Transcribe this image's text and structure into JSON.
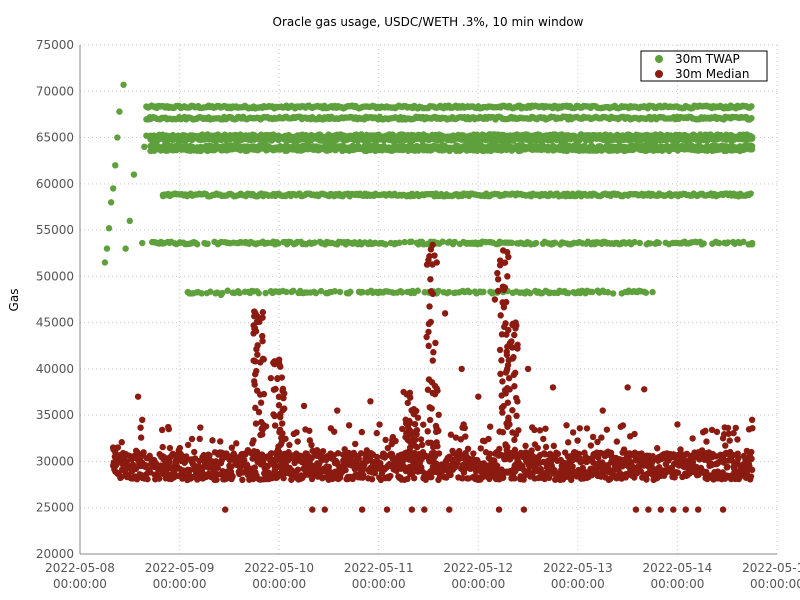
{
  "chart_data": {
    "type": "scatter",
    "title": "Oracle gas usage, USDC/WETH .3%, 10 min window",
    "xlabel": "",
    "ylabel": "Gas",
    "ylim": [
      20000,
      75000
    ],
    "y_ticks": [
      "20000",
      "25000",
      "30000",
      "35000",
      "40000",
      "45000",
      "50000",
      "55000",
      "60000",
      "65000",
      "70000",
      "75000"
    ],
    "xlim": [
      "2022-05-08 00:00:00",
      "2022-05-15 00:00:00"
    ],
    "x_ticks": [
      {
        "date": "2022-05-08",
        "time": "00:00:00"
      },
      {
        "date": "2022-05-09",
        "time": "00:00:00"
      },
      {
        "date": "2022-05-10",
        "time": "00:00:00"
      },
      {
        "date": "2022-05-11",
        "time": "00:00:00"
      },
      {
        "date": "2022-05-12",
        "time": "00:00:00"
      },
      {
        "date": "2022-05-13",
        "time": "00:00:00"
      },
      {
        "date": "2022-05-14",
        "time": "00:00:00"
      },
      {
        "date": "2022-05-15",
        "time": "00:00:00"
      }
    ],
    "grid": true,
    "legend_position": "top-right",
    "series": [
      {
        "name": "30m TWAP",
        "color": "#5ea03c",
        "points": [
          [
            "2022-05-08 06:00",
            51500
          ],
          [
            "2022-05-08 06:30",
            53000
          ],
          [
            "2022-05-08 07:00",
            55200
          ],
          [
            "2022-05-08 07:30",
            58000
          ],
          [
            "2022-05-08 08:00",
            59500
          ],
          [
            "2022-05-08 08:30",
            62000
          ],
          [
            "2022-05-08 09:00",
            65000
          ],
          [
            "2022-05-08 09:30",
            67800
          ],
          [
            "2022-05-08 10:30",
            70700
          ],
          [
            "2022-05-08 11:00",
            53000
          ],
          [
            "2022-05-08 12:00",
            56000
          ],
          [
            "2022-05-08 13:00",
            61000
          ],
          [
            "2022-05-08 15:00",
            53600
          ],
          [
            "2022-05-08 15:30",
            64000
          ],
          [
            "2022-05-08 16:00",
            65200
          ],
          [
            "2022-05-08 17:00",
            67000
          ],
          [
            "2022-05-08 18:00",
            68300
          ],
          [
            "2022-05-08 20:00",
            58800
          ],
          [
            "2022-05-09 00:00",
            53600
          ],
          [
            "2022-05-09 02:00",
            48300
          ],
          [
            "2022-05-09 06:00",
            53600
          ],
          [
            "2022-05-09 10:00",
            48000
          ],
          [
            "2022-05-09 14:00",
            48300
          ],
          [
            "2022-05-09 16:00",
            53600
          ],
          [
            "2022-05-10 00:00",
            48300
          ],
          [
            "2022-05-10 04:00",
            53600
          ],
          [
            "2022-05-10 12:00",
            53600
          ],
          [
            "2022-05-10 20:00",
            48300
          ],
          [
            "2022-05-11 04:00",
            53600
          ],
          [
            "2022-05-11 08:00",
            48300
          ],
          [
            "2022-05-11 14:00",
            48300
          ],
          [
            "2022-05-11 18:00",
            53600
          ],
          [
            "2022-05-12 00:00",
            53600
          ],
          [
            "2022-05-12 06:00",
            48300
          ],
          [
            "2022-05-12 12:00",
            48300
          ],
          [
            "2022-05-12 18:00",
            53600
          ],
          [
            "2022-05-13 00:00",
            48300
          ],
          [
            "2022-05-13 06:00",
            53600
          ],
          [
            "2022-05-13 12:00",
            48300
          ],
          [
            "2022-05-13 18:00",
            48300
          ],
          [
            "2022-05-14 00:00",
            53600
          ],
          [
            "2022-05-14 12:00",
            53600
          ],
          [
            "2022-05-14 18:00",
            53600
          ]
        ],
        "levels": [
          {
            "y": 68300,
            "from": "2022-05-08 16:00",
            "to": "2022-05-14 18:00"
          },
          {
            "y": 67100,
            "from": "2022-05-08 16:00",
            "to": "2022-05-14 18:00"
          },
          {
            "y": 65200,
            "from": "2022-05-08 17:00",
            "to": "2022-05-14 18:00"
          },
          {
            "y": 64800,
            "from": "2022-05-08 17:00",
            "to": "2022-05-14 18:00"
          },
          {
            "y": 64000,
            "from": "2022-05-08 17:00",
            "to": "2022-05-14 18:00"
          },
          {
            "y": 63700,
            "from": "2022-05-08 17:00",
            "to": "2022-05-14 18:00"
          },
          {
            "y": 58800,
            "from": "2022-05-08 20:00",
            "to": "2022-05-14 18:00"
          },
          {
            "y": 53600,
            "from": "2022-05-08 17:00",
            "to": "2022-05-14 18:00"
          },
          {
            "y": 48300,
            "from": "2022-05-09 02:00",
            "to": "2022-05-13 17:00"
          }
        ]
      },
      {
        "name": "30m Median",
        "color": "#8b1a10",
        "baseline": [
          28000,
          31000
        ],
        "floor_level": 24800,
        "points": [
          [
            "2022-05-08 08:00",
            31500
          ],
          [
            "2022-05-08 14:00",
            37000
          ],
          [
            "2022-05-08 15:00",
            34500
          ],
          [
            "2022-05-09 18:00",
            46200
          ],
          [
            "2022-05-09 20:00",
            43000
          ],
          [
            "2022-05-09 22:00",
            39000
          ],
          [
            "2022-05-10 00:00",
            41000
          ],
          [
            "2022-05-10 06:00",
            36000
          ],
          [
            "2022-05-10 14:00",
            35500
          ],
          [
            "2022-05-10 22:00",
            36500
          ],
          [
            "2022-05-11 06:00",
            37500
          ],
          [
            "2022-05-11 12:00",
            44000
          ],
          [
            "2022-05-11 13:00",
            53400
          ],
          [
            "2022-05-11 14:00",
            51500
          ],
          [
            "2022-05-11 16:00",
            46000
          ],
          [
            "2022-05-11 20:00",
            40000
          ],
          [
            "2022-05-12 00:00",
            37000
          ],
          [
            "2022-05-12 04:00",
            47500
          ],
          [
            "2022-05-12 06:00",
            52800
          ],
          [
            "2022-05-12 07:00",
            50000
          ],
          [
            "2022-05-12 09:00",
            45000
          ],
          [
            "2022-05-12 12:00",
            40000
          ],
          [
            "2022-05-12 18:00",
            38000
          ],
          [
            "2022-05-13 06:00",
            35500
          ],
          [
            "2022-05-13 12:00",
            38000
          ],
          [
            "2022-05-13 16:00",
            37800
          ],
          [
            "2022-05-14 00:00",
            34000
          ],
          [
            "2022-05-14 18:00",
            34500
          ]
        ],
        "spikes": [
          {
            "x": "2022-05-09 19:00",
            "top": 46200
          },
          {
            "x": "2022-05-10 00:00",
            "top": 41000
          },
          {
            "x": "2022-05-11 13:00",
            "top": 53400
          },
          {
            "x": "2022-05-12 06:00",
            "top": 52800
          },
          {
            "x": "2022-05-12 08:00",
            "top": 47000
          },
          {
            "x": "2022-05-11 08:00",
            "top": 37500
          }
        ]
      }
    ]
  }
}
